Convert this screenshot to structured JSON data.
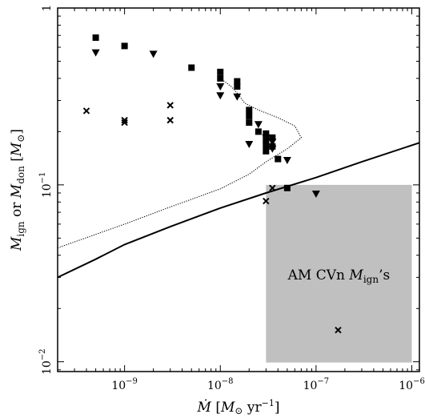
{
  "chart_data": {
    "type": "scatter",
    "title": "",
    "xlabel": "Ṁ [M⊙ yr⁻¹]",
    "ylabel": "M_ign or M_don [M⊙]",
    "xscale": "log",
    "yscale": "log",
    "xlim": [
      2e-10,
      1.2e-06
    ],
    "ylim": [
      0.0088,
      1.0
    ],
    "grid": false,
    "legend": "none",
    "x_tick_labels": [
      {
        "mant": "10",
        "exp": "−9",
        "value": 1e-09
      },
      {
        "mant": "10",
        "exp": "−8",
        "value": 1e-08
      },
      {
        "mant": "10",
        "exp": "−7",
        "value": 1e-07
      },
      {
        "mant": "10",
        "exp": "−6",
        "value": 1e-06
      }
    ],
    "y_tick_labels": [
      {
        "text": "1",
        "value": 1.0
      },
      {
        "mant": "10",
        "exp": "−1",
        "value": 0.1
      },
      {
        "mant": "10",
        "exp": "−2",
        "value": 0.01
      }
    ],
    "shaded_region": {
      "x": [
        3e-08,
        1e-06
      ],
      "y": [
        0.0099,
        0.1
      ],
      "color": "#c0c0c0",
      "label": "AM CVn M_ign's"
    },
    "series": [
      {
        "marker": "square",
        "points": [
          [
            5e-10,
            0.68
          ],
          [
            1e-09,
            0.61
          ],
          [
            5e-09,
            0.46
          ],
          [
            1e-08,
            0.435
          ],
          [
            1e-08,
            0.4
          ],
          [
            1.5e-08,
            0.385
          ],
          [
            1.5e-08,
            0.36
          ],
          [
            2e-08,
            0.265
          ],
          [
            2e-08,
            0.245
          ],
          [
            2e-08,
            0.225
          ],
          [
            2.5e-08,
            0.2
          ],
          [
            3e-08,
            0.195
          ],
          [
            3e-08,
            0.18
          ],
          [
            3e-08,
            0.168
          ],
          [
            3e-08,
            0.155
          ],
          [
            3.5e-08,
            0.185
          ],
          [
            3.5e-08,
            0.165
          ],
          [
            4e-08,
            0.14
          ],
          [
            5e-08,
            0.096
          ]
        ]
      },
      {
        "marker": "triangle-down",
        "points": [
          [
            5e-10,
            0.56
          ],
          [
            2e-09,
            0.55
          ],
          [
            1e-08,
            0.36
          ],
          [
            1e-08,
            0.32
          ],
          [
            1.5e-08,
            0.315
          ],
          [
            2e-08,
            0.17
          ],
          [
            2.5e-08,
            0.22
          ],
          [
            3e-08,
            0.185
          ],
          [
            3.5e-08,
            0.175
          ],
          [
            3.5e-08,
            0.16
          ],
          [
            5e-08,
            0.138
          ],
          [
            1e-07,
            0.089
          ]
        ]
      },
      {
        "marker": "x",
        "points": [
          [
            4e-10,
            0.262
          ],
          [
            1e-09,
            0.225
          ],
          [
            1e-09,
            0.232
          ],
          [
            3e-09,
            0.282
          ],
          [
            3e-09,
            0.232
          ],
          [
            3e-08,
            0.081
          ],
          [
            3.5e-08,
            0.096
          ],
          [
            1.7e-07,
            0.0151
          ]
        ]
      }
    ],
    "curves": [
      {
        "style": "solid",
        "points": [
          [
            2e-10,
            0.03
          ],
          [
            5e-10,
            0.038
          ],
          [
            1e-09,
            0.046
          ],
          [
            3e-09,
            0.058
          ],
          [
            1e-08,
            0.074
          ],
          [
            3e-08,
            0.09
          ],
          [
            1e-07,
            0.11
          ],
          [
            3e-07,
            0.135
          ],
          [
            1.2e-06,
            0.173
          ]
        ]
      },
      {
        "style": "dotted",
        "points": [
          [
            2e-10,
            0.044
          ],
          [
            1e-09,
            0.06
          ],
          [
            3e-09,
            0.075
          ],
          [
            1e-08,
            0.095
          ],
          [
            2e-08,
            0.115
          ],
          [
            3e-08,
            0.135
          ],
          [
            5e-08,
            0.16
          ],
          [
            7e-08,
            0.185
          ],
          [
            6e-08,
            0.215
          ],
          [
            4e-08,
            0.24
          ],
          [
            2.5e-08,
            0.265
          ],
          [
            1.8e-08,
            0.29
          ],
          [
            1.5e-08,
            0.33
          ],
          [
            1.3e-08,
            0.36
          ],
          [
            1e-08,
            0.4
          ]
        ]
      }
    ]
  }
}
